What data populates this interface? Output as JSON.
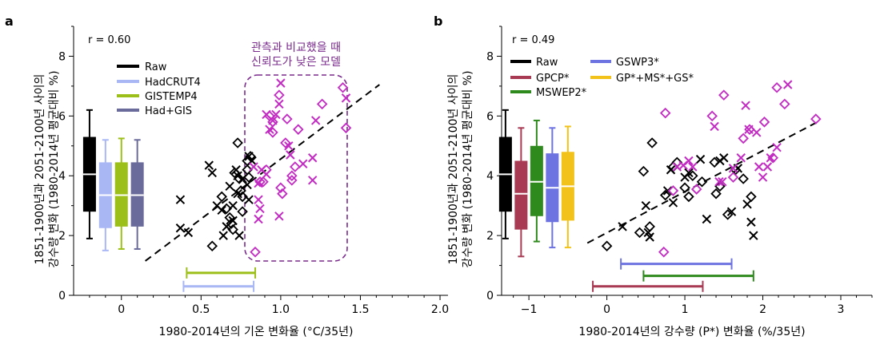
{
  "panels": [
    {
      "id": "a",
      "label": "a",
      "r_label": "r = 0.60",
      "xlabel": "1980-2014년의 기온 변화율 (°C/35년)",
      "ylabel_line1": "1851-1900년과 2051-2100년 사이의",
      "ylabel_line2": "강수량 변화 (1980-2014년 평균대비 %)",
      "xlim": [
        -0.3,
        2.05
      ],
      "ylim": [
        0,
        9
      ],
      "xticks": [
        0,
        0.5,
        1.0,
        1.5,
        2.0
      ],
      "xtick_labels": [
        "0",
        "0.5",
        "1.0",
        "1.5",
        "2.0"
      ],
      "yticks": [
        0,
        2,
        4,
        6,
        8
      ],
      "ytick_labels": [
        "0",
        "2",
        "4",
        "6",
        "8"
      ],
      "annotation_line1": "관측과 비교했을 때",
      "annotation_line2": "신뢰도가 낮은 모델",
      "annotation_color": "#7a2a8c",
      "legend": [
        {
          "name": "Raw",
          "color": "#000000"
        },
        {
          "name": "HadCRUT4",
          "color": "#a9b7f5"
        },
        {
          "name": "GISTEMP4",
          "color": "#9cbf1a"
        },
        {
          "name": "Had+GIS",
          "color": "#6a6b9a"
        }
      ],
      "boxes": [
        {
          "name": "Raw",
          "color": "#000000",
          "x": -0.2,
          "whisker_low": 1.9,
          "q1": 2.8,
          "median": 4.05,
          "q3": 5.3,
          "whisker_high": 6.2
        },
        {
          "name": "HadCRUT4",
          "color": "#a9b7f5",
          "x": -0.1,
          "whisker_low": 1.5,
          "q1": 2.25,
          "median": 3.35,
          "q3": 4.45,
          "whisker_high": 5.2
        },
        {
          "name": "GISTEMP4",
          "color": "#9cbf1a",
          "x": 0.0,
          "whisker_low": 1.55,
          "q1": 2.3,
          "median": 3.35,
          "q3": 4.45,
          "whisker_high": 5.25
        },
        {
          "name": "Had+GIS",
          "color": "#6a6b9a",
          "x": 0.1,
          "whisker_low": 1.55,
          "q1": 2.3,
          "median": 3.35,
          "q3": 4.45,
          "whisker_high": 5.2
        }
      ],
      "obs_ranges": [
        {
          "name": "GISTEMP4",
          "color": "#9cbf1a",
          "x0": 0.41,
          "x1": 0.84,
          "y": 0.75
        },
        {
          "name": "HadCRUT4",
          "color": "#a9b7f5",
          "x0": 0.39,
          "x1": 0.83,
          "y": 0.3
        }
      ],
      "regression": {
        "x0": 0.15,
        "y0": 1.15,
        "x1": 1.62,
        "y1": 7.05
      },
      "points_black_x": [
        [
          0.37,
          3.2
        ],
        [
          0.37,
          2.25
        ],
        [
          0.42,
          2.1
        ],
        [
          0.55,
          4.35
        ],
        [
          0.57,
          4.1
        ],
        [
          0.6,
          3.0
        ],
        [
          0.63,
          2.85
        ],
        [
          0.64,
          2.0
        ],
        [
          0.66,
          2.3
        ],
        [
          0.68,
          3.65
        ],
        [
          0.7,
          3.0
        ],
        [
          0.7,
          2.5
        ],
        [
          0.72,
          4.2
        ],
        [
          0.73,
          4.0
        ],
        [
          0.73,
          3.4
        ],
        [
          0.74,
          2.0
        ],
        [
          0.76,
          3.9
        ],
        [
          0.79,
          3.7
        ],
        [
          0.8,
          4.65
        ],
        [
          0.8,
          3.2
        ],
        [
          0.82,
          4.5
        ]
      ],
      "points_black_d": [
        [
          0.57,
          1.65
        ],
        [
          0.63,
          3.3
        ],
        [
          0.66,
          2.9
        ],
        [
          0.68,
          2.6
        ],
        [
          0.69,
          2.4
        ],
        [
          0.7,
          2.2
        ],
        [
          0.71,
          4.1
        ],
        [
          0.73,
          5.1
        ],
        [
          0.74,
          3.9
        ],
        [
          0.75,
          3.5
        ],
        [
          0.76,
          3.3
        ],
        [
          0.76,
          2.8
        ],
        [
          0.79,
          4.5
        ],
        [
          0.79,
          4.2
        ],
        [
          0.8,
          3.95
        ],
        [
          0.81,
          4.65
        ]
      ],
      "points_magenta_x": [
        [
          0.83,
          4.3
        ],
        [
          0.86,
          3.75
        ],
        [
          0.86,
          3.2
        ],
        [
          0.86,
          2.55
        ],
        [
          0.87,
          2.9
        ],
        [
          0.88,
          4.2
        ],
        [
          0.91,
          6.05
        ],
        [
          0.91,
          4.05
        ],
        [
          0.93,
          5.55
        ],
        [
          0.95,
          5.85
        ],
        [
          0.97,
          6.05
        ],
        [
          0.99,
          6.4
        ],
        [
          0.99,
          2.65
        ],
        [
          1.0,
          7.1
        ],
        [
          1.05,
          5.0
        ],
        [
          1.06,
          4.7
        ],
        [
          1.14,
          4.4
        ],
        [
          1.2,
          4.6
        ],
        [
          1.2,
          3.85
        ],
        [
          1.22,
          5.85
        ],
        [
          1.41,
          6.6
        ]
      ],
      "points_magenta_d": [
        [
          0.84,
          1.45
        ],
        [
          0.87,
          3.8
        ],
        [
          0.89,
          3.8
        ],
        [
          0.91,
          4.2
        ],
        [
          0.93,
          6.0
        ],
        [
          0.95,
          5.8
        ],
        [
          0.95,
          5.45
        ],
        [
          0.99,
          6.7
        ],
        [
          1.0,
          3.6
        ],
        [
          1.01,
          3.4
        ],
        [
          1.03,
          5.1
        ],
        [
          1.04,
          5.9
        ],
        [
          1.07,
          4.0
        ],
        [
          1.07,
          3.85
        ],
        [
          1.09,
          4.3
        ],
        [
          1.11,
          5.55
        ],
        [
          1.26,
          6.4
        ],
        [
          1.39,
          6.95
        ],
        [
          1.41,
          5.6
        ]
      ]
    },
    {
      "id": "b",
      "label": "b",
      "r_label": "r = 0.49",
      "xlabel": "1980-2014년의 강수량 (P*) 변화율 (%/35년)",
      "ylabel_line1": "1851-1900년과 2051-2100년 사이의",
      "ylabel_line2": "강수량 변화 (1980-2014년 평균대비 %)",
      "xlim": [
        -1.35,
        3.4
      ],
      "ylim": [
        0,
        9
      ],
      "xticks": [
        -1,
        0,
        1,
        2,
        3
      ],
      "xtick_labels": [
        "−1",
        "0",
        "1",
        "2",
        "3"
      ],
      "yticks": [
        0,
        2,
        4,
        6,
        8
      ],
      "ytick_labels": [
        "0",
        "2",
        "4",
        "6",
        "8"
      ],
      "legend": [
        {
          "name": "Raw",
          "color": "#000000"
        },
        {
          "name": "GPCP*",
          "color": "#a83a53"
        },
        {
          "name": "MSWEP2*",
          "color": "#2e8a1c"
        },
        {
          "name": "GSWP3*",
          "color": "#6d73e0"
        },
        {
          "name": "GP*+MS*+GS*",
          "color": "#f2c21b"
        }
      ],
      "boxes": [
        {
          "name": "Raw",
          "color": "#000000",
          "x": -1.3,
          "whisker_low": 1.9,
          "q1": 2.8,
          "median": 4.05,
          "q3": 5.3,
          "whisker_high": 6.2
        },
        {
          "name": "GPCP*",
          "color": "#a83a53",
          "x": -1.1,
          "whisker_low": 1.3,
          "q1": 2.2,
          "median": 3.4,
          "q3": 4.5,
          "whisker_high": 5.6
        },
        {
          "name": "MSWEP2*",
          "color": "#2e8a1c",
          "x": -0.9,
          "whisker_low": 1.8,
          "q1": 2.65,
          "median": 3.8,
          "q3": 5.0,
          "whisker_high": 5.85
        },
        {
          "name": "GSWP3*",
          "color": "#6d73e0",
          "x": -0.7,
          "whisker_low": 1.6,
          "q1": 2.45,
          "median": 3.6,
          "q3": 4.75,
          "whisker_high": 5.6
        },
        {
          "name": "GP*+MS*+GS*",
          "color": "#f2c21b",
          "x": -0.5,
          "whisker_low": 1.6,
          "q1": 2.5,
          "median": 3.65,
          "q3": 4.8,
          "whisker_high": 5.65
        }
      ],
      "obs_ranges": [
        {
          "name": "GSWP3*",
          "color": "#6d73e0",
          "x0": 0.18,
          "x1": 1.6,
          "y": 1.05
        },
        {
          "name": "MSWEP2*",
          "color": "#2e8a1c",
          "x0": 0.47,
          "x1": 1.88,
          "y": 0.65
        },
        {
          "name": "GPCP*",
          "color": "#a83a53",
          "x0": -0.18,
          "x1": 1.23,
          "y": 0.3
        }
      ],
      "regression": {
        "x0": -0.25,
        "y0": 1.75,
        "x1": 2.7,
        "y1": 5.8
      },
      "points_black_x": [
        [
          0.2,
          2.3
        ],
        [
          0.5,
          3.0
        ],
        [
          0.53,
          2.1
        ],
        [
          0.55,
          1.95
        ],
        [
          0.78,
          3.5
        ],
        [
          0.82,
          4.2
        ],
        [
          0.85,
          3.1
        ],
        [
          1.0,
          3.95
        ],
        [
          1.05,
          4.1
        ],
        [
          1.2,
          4.55
        ],
        [
          1.28,
          2.55
        ],
        [
          1.45,
          4.5
        ],
        [
          1.5,
          4.6
        ],
        [
          1.6,
          2.8
        ],
        [
          1.68,
          4.25
        ],
        [
          1.8,
          3.05
        ],
        [
          1.85,
          2.45
        ],
        [
          1.88,
          2.0
        ]
      ],
      "points_black_d": [
        [
          0.0,
          1.65
        ],
        [
          0.42,
          2.1
        ],
        [
          0.47,
          4.15
        ],
        [
          0.55,
          2.3
        ],
        [
          0.58,
          5.1
        ],
        [
          0.75,
          3.35
        ],
        [
          0.85,
          4.3
        ],
        [
          0.9,
          4.45
        ],
        [
          1.0,
          3.6
        ],
        [
          1.05,
          3.3
        ],
        [
          1.1,
          4.0
        ],
        [
          1.22,
          3.8
        ],
        [
          1.38,
          4.45
        ],
        [
          1.4,
          3.4
        ],
        [
          1.45,
          3.65
        ],
        [
          1.55,
          2.7
        ],
        [
          1.65,
          4.2
        ],
        [
          1.75,
          3.9
        ],
        [
          1.85,
          3.3
        ]
      ],
      "points_magenta_x": [
        [
          0.9,
          4.3
        ],
        [
          0.98,
          4.35
        ],
        [
          1.05,
          4.5
        ],
        [
          1.1,
          4.3
        ],
        [
          1.38,
          5.65
        ],
        [
          1.44,
          3.8
        ],
        [
          1.48,
          3.8
        ],
        [
          1.62,
          4.25
        ],
        [
          1.72,
          4.6
        ],
        [
          1.78,
          6.35
        ],
        [
          1.82,
          5.55
        ],
        [
          1.92,
          5.45
        ],
        [
          1.95,
          4.3
        ],
        [
          2.0,
          3.95
        ],
        [
          2.06,
          4.3
        ],
        [
          2.1,
          4.6
        ],
        [
          2.18,
          4.95
        ],
        [
          2.32,
          7.05
        ]
      ],
      "points_magenta_d": [
        [
          0.73,
          1.45
        ],
        [
          0.75,
          6.1
        ],
        [
          0.85,
          3.5
        ],
        [
          1.15,
          3.55
        ],
        [
          1.35,
          6.0
        ],
        [
          1.5,
          6.7
        ],
        [
          1.62,
          3.95
        ],
        [
          1.75,
          5.25
        ],
        [
          1.83,
          5.55
        ],
        [
          2.02,
          5.8
        ],
        [
          2.13,
          4.6
        ],
        [
          2.18,
          6.95
        ],
        [
          2.28,
          6.4
        ],
        [
          2.68,
          5.9
        ]
      ]
    }
  ]
}
